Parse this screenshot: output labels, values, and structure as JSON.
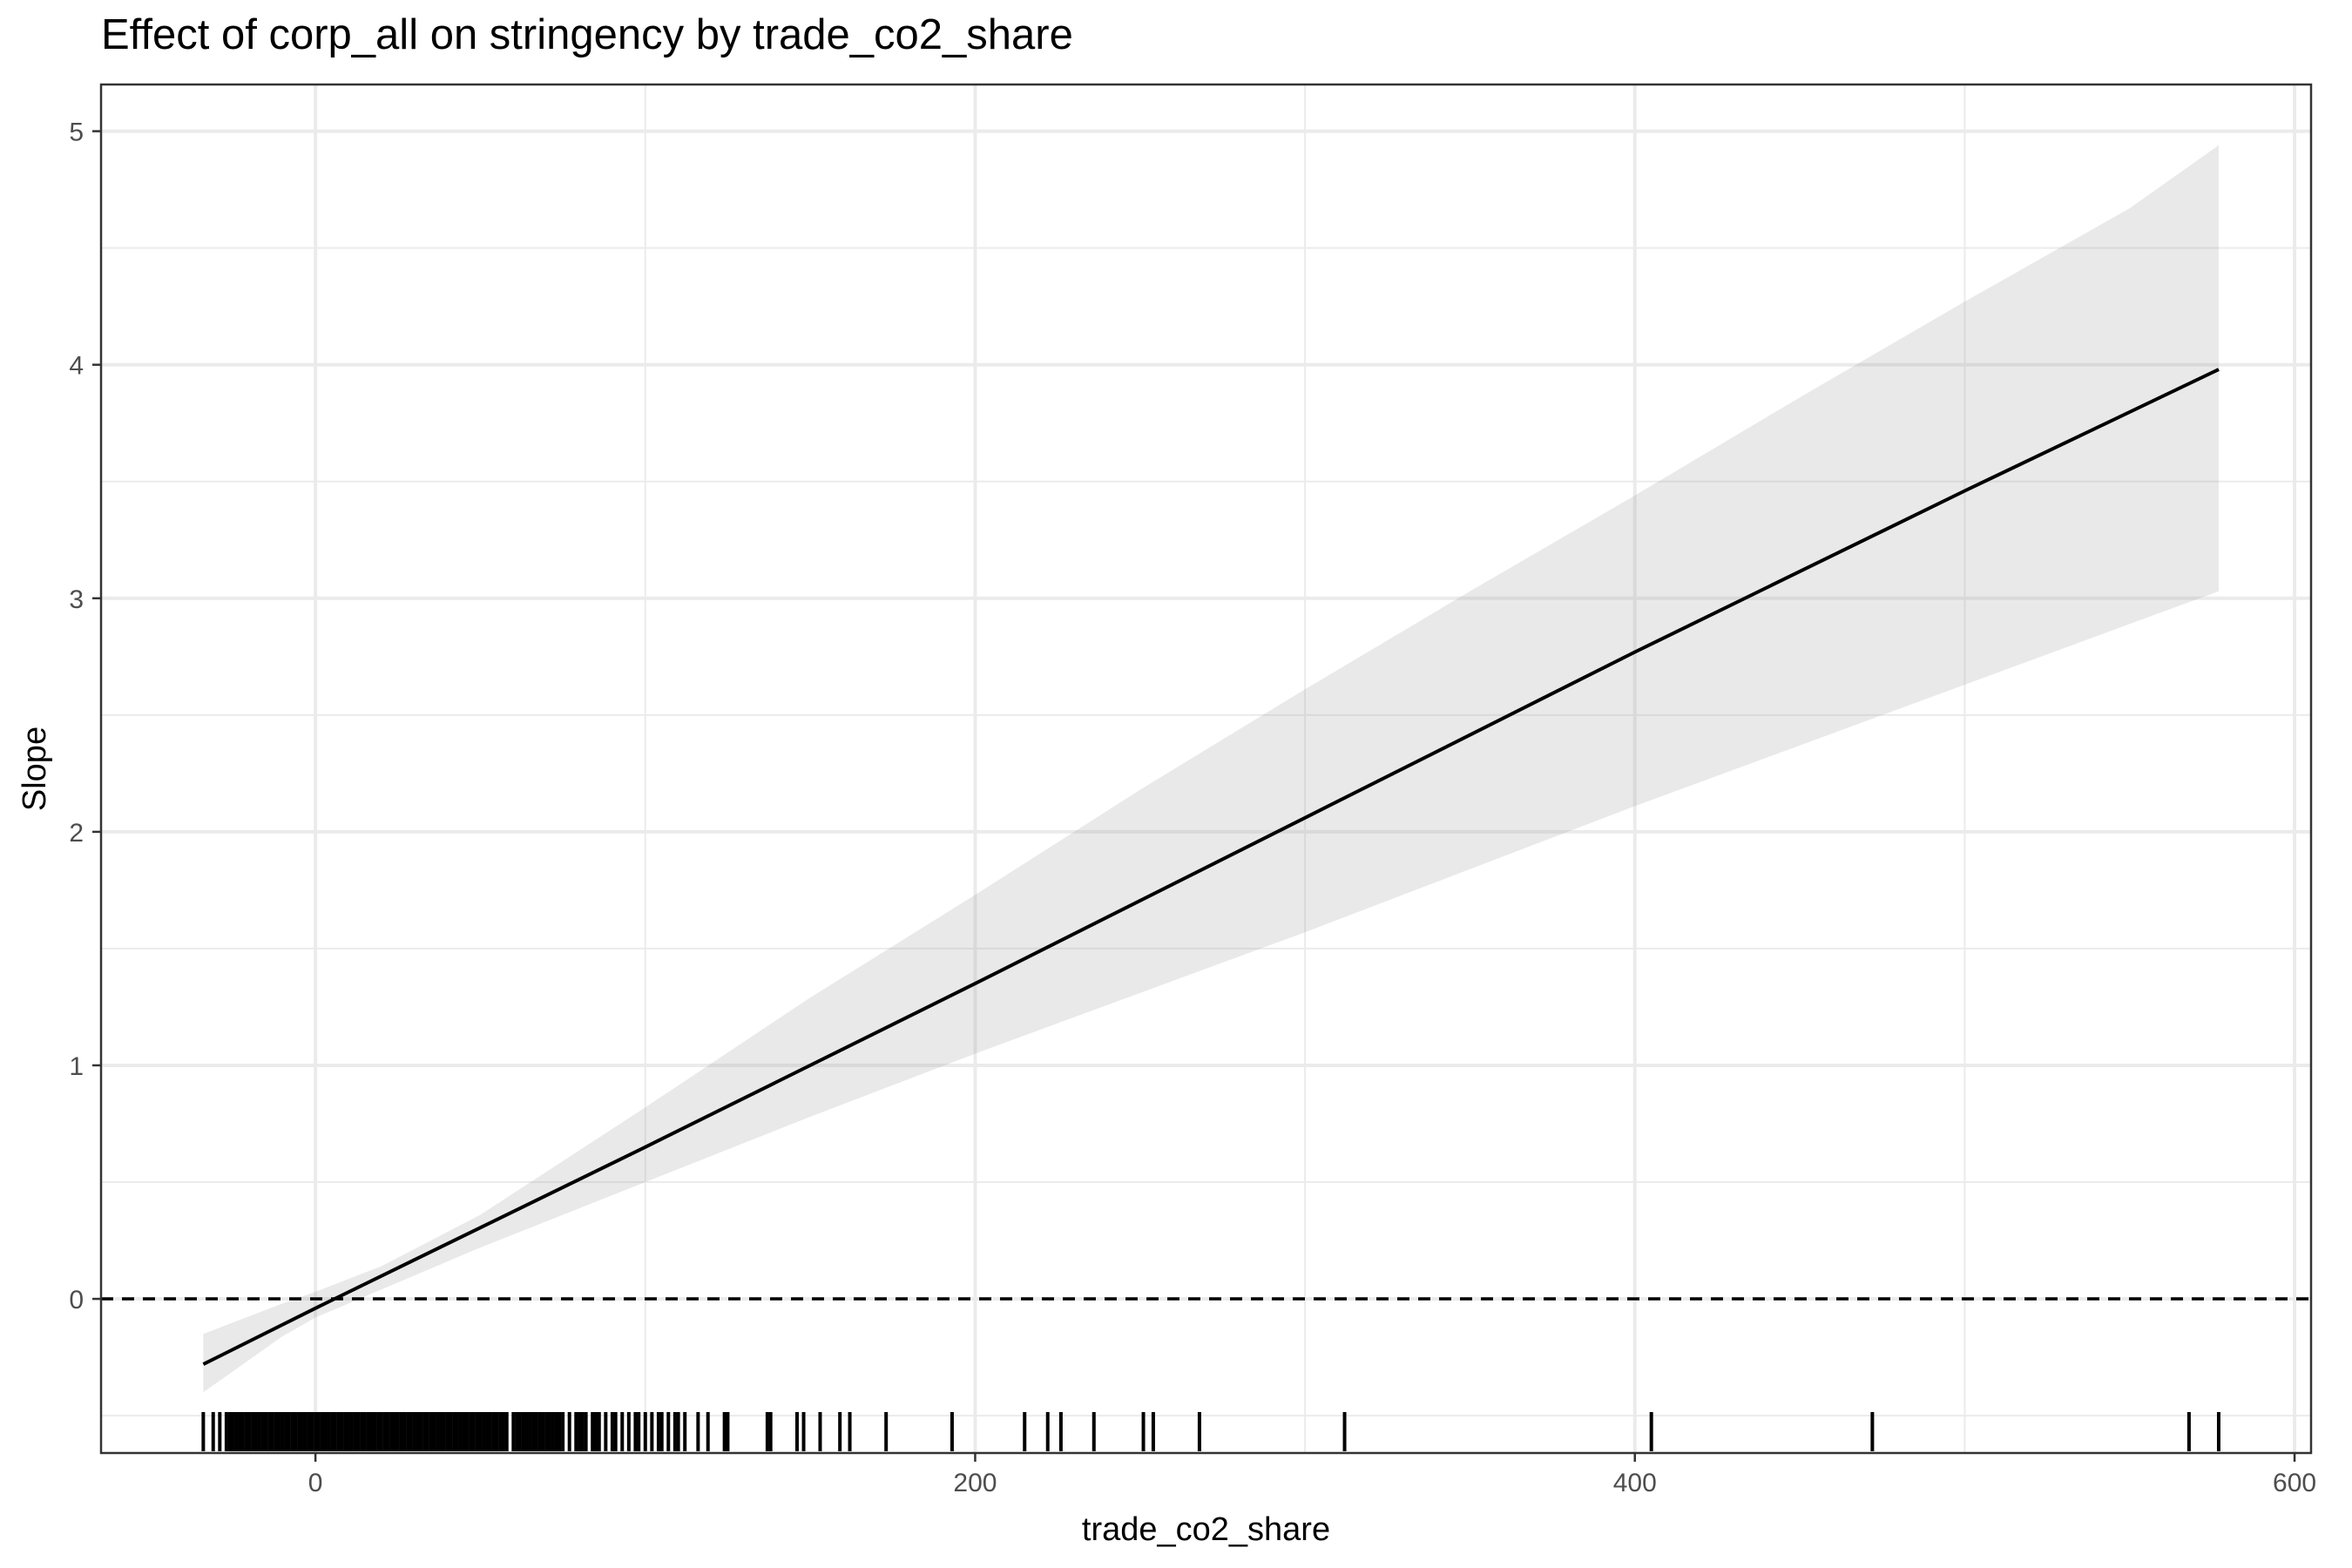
{
  "chart_data": {
    "type": "line",
    "title": "Effect of corp_all on stringency by trade_co2_share",
    "xlabel": "trade_co2_share",
    "ylabel": "Slope",
    "xlim": [
      -65,
      605
    ],
    "ylim": [
      -0.66,
      5.2
    ],
    "x_ticks": [
      0,
      200,
      400,
      600
    ],
    "x_tick_labels": [
      "0",
      "200",
      "400",
      "600"
    ],
    "y_ticks": [
      0,
      1,
      2,
      3,
      4,
      5
    ],
    "y_tick_labels": [
      "0",
      "1",
      "2",
      "3",
      "4",
      "5"
    ],
    "grid": true,
    "series": [
      {
        "x": [
          -34,
          0,
          100,
          200,
          300,
          400,
          500,
          577
        ],
        "values": [
          -0.28,
          -0.04,
          0.65,
          1.35,
          2.06,
          2.77,
          3.46,
          3.98
        ]
      }
    ],
    "confidence_band": {
      "x": [
        -34,
        -10,
        0,
        20,
        50,
        100,
        150,
        200,
        250,
        300,
        350,
        400,
        450,
        500,
        550,
        577
      ],
      "lower": [
        -0.4,
        -0.16,
        -0.08,
        0.04,
        0.22,
        0.5,
        0.78,
        1.05,
        1.31,
        1.57,
        1.84,
        2.11,
        2.37,
        2.63,
        2.89,
        3.03
      ],
      "upper": [
        -0.15,
        -0.02,
        0.03,
        0.14,
        0.36,
        0.82,
        1.29,
        1.73,
        2.18,
        2.61,
        3.03,
        3.44,
        3.86,
        4.27,
        4.67,
        4.94
      ]
    },
    "reference_line": {
      "y": 0,
      "style": "dashed"
    },
    "rug_x": [
      -34,
      -31,
      -29,
      -27,
      -26,
      -25,
      -24,
      -23,
      -22,
      -21,
      -20,
      -19,
      -18,
      -17,
      -16,
      -15,
      -14,
      -13,
      -12,
      -11,
      -10,
      -9,
      -8,
      -7,
      -6,
      -5,
      -4,
      -3,
      -2,
      -1,
      0,
      1,
      2,
      3,
      4,
      5,
      6,
      7,
      8,
      9,
      10,
      11,
      12,
      13,
      14,
      15,
      16,
      17,
      18,
      19,
      20,
      21,
      22,
      23,
      24,
      25,
      26,
      27,
      28,
      29,
      30,
      31,
      32,
      33,
      34,
      35,
      36,
      37,
      38,
      39,
      40,
      41,
      42,
      43,
      44,
      45,
      46,
      47,
      48,
      49,
      50,
      51,
      52,
      53,
      54,
      55,
      56,
      57,
      58,
      60,
      61,
      62,
      63,
      64,
      65,
      66,
      67,
      68,
      69,
      70,
      71,
      72,
      73,
      74,
      75,
      77,
      79,
      80,
      81,
      82,
      84,
      85,
      86,
      88,
      90,
      91,
      93,
      95,
      97,
      98,
      100,
      102,
      104,
      105,
      107,
      109,
      110,
      112,
      116,
      119,
      124,
      125,
      137,
      138,
      146,
      148,
      153,
      159,
      162,
      173,
      193,
      215,
      222,
      226,
      236,
      251,
      254,
      268,
      312,
      405,
      472,
      568,
      577
    ]
  }
}
